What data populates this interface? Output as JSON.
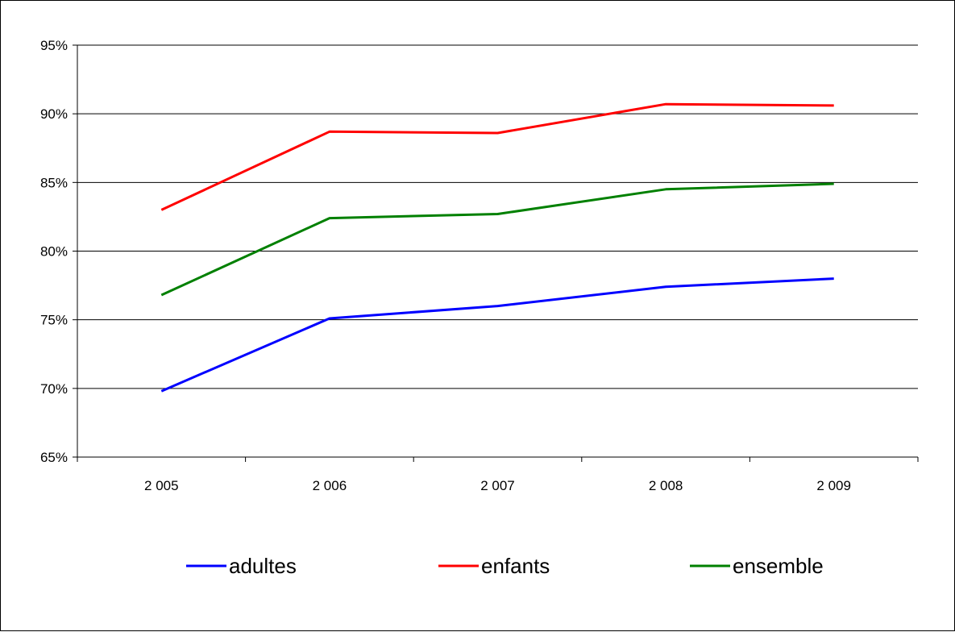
{
  "chart_data": {
    "type": "line",
    "categories": [
      "2 005",
      "2 006",
      "2 007",
      "2 008",
      "2 009"
    ],
    "series": [
      {
        "name": "adultes",
        "color": "#0000ff",
        "values": [
          69.8,
          75.1,
          76.0,
          77.4,
          78.0
        ]
      },
      {
        "name": "enfants",
        "color": "#ff0000",
        "values": [
          83.0,
          88.7,
          88.6,
          90.7,
          90.6
        ]
      },
      {
        "name": "ensemble",
        "color": "#008000",
        "values": [
          76.8,
          82.4,
          82.7,
          84.5,
          84.9
        ]
      }
    ],
    "yticks": [
      "65%",
      "70%",
      "75%",
      "80%",
      "85%",
      "90%",
      "95%"
    ],
    "ylim": [
      65,
      95
    ],
    "ytick_step": 5,
    "grid": true,
    "legend": "bottom"
  }
}
